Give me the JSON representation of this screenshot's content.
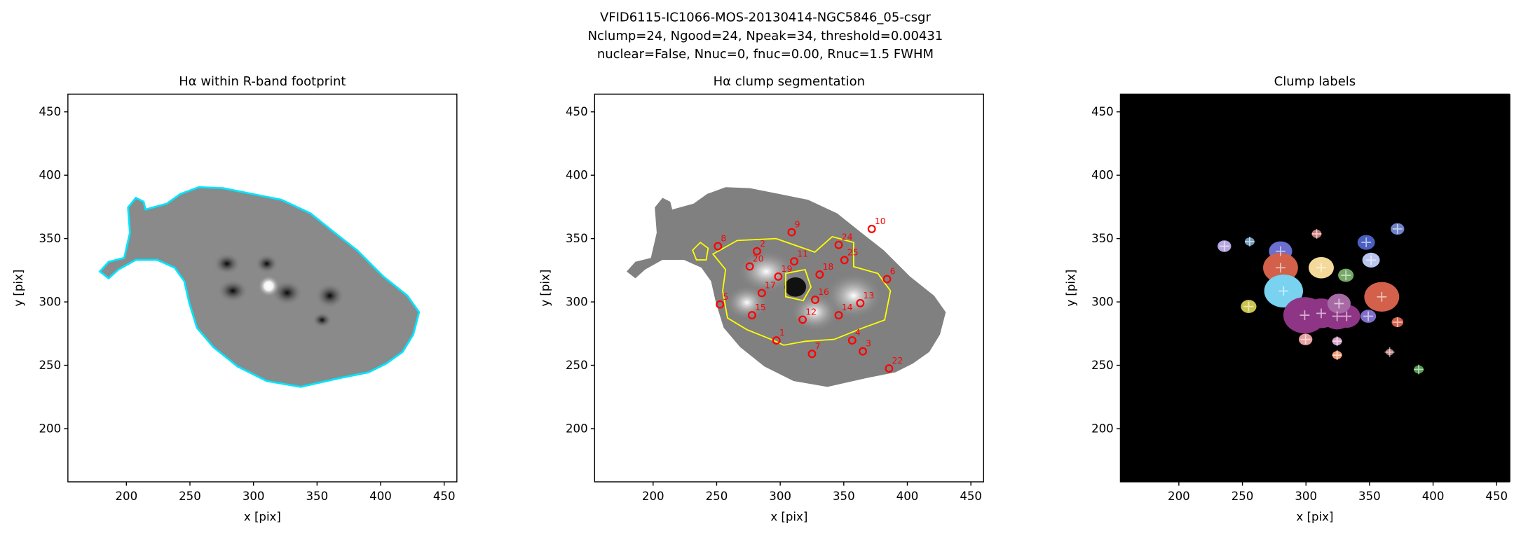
{
  "figure_title": [
    "VFID6115-IC1066-MOS-20130414-NGC5846_05-csgr",
    "Nclump=24, Ngood=24, Npeak=34, threshold=0.00431",
    "nuclear=False, Nnuc=0, fnuc=0.00, Rnuc=1.5 FWHM"
  ],
  "chart_data": [
    {
      "type": "image",
      "title": "Hα within R-band footprint",
      "xlabel": "x [pix]",
      "ylabel": "y [pix]",
      "xlim": [
        154,
        460
      ],
      "ylim": [
        158,
        464
      ],
      "xticks": [
        200,
        250,
        300,
        350,
        400,
        450
      ],
      "yticks": [
        200,
        250,
        300,
        350,
        400,
        450
      ]
    },
    {
      "type": "clumps",
      "title": "Hα clump segmentation",
      "xlabel": "x [pix]",
      "ylabel": "y [pix]",
      "xlim": [
        154,
        460
      ],
      "ylim": [
        158,
        464
      ],
      "xticks": [
        200,
        250,
        300,
        350,
        400,
        450
      ],
      "yticks": [
        200,
        250,
        300,
        350,
        400,
        450
      ],
      "marker_color": "#ff0000",
      "labels": [
        "9",
        "10",
        "24",
        "25",
        "2",
        "8",
        "20",
        "11",
        "18",
        "19",
        "6",
        "17",
        "16",
        "13",
        "5",
        "15",
        "12",
        "14",
        "1",
        "4",
        "7",
        "3",
        "22"
      ],
      "x": [
        309,
        372,
        346,
        350.5,
        281.7,
        251,
        276,
        311,
        331,
        298.5,
        384,
        285.5,
        327.5,
        363,
        252.6,
        277.8,
        317.6,
        346,
        297,
        356.6,
        325,
        365,
        385.6
      ],
      "y": [
        355,
        357.6,
        345,
        333,
        340,
        344,
        328,
        332,
        321.6,
        320,
        318,
        307,
        301.7,
        299,
        298,
        289.5,
        286,
        289.5,
        269.6,
        269.6,
        259,
        261,
        247.5
      ]
    },
    {
      "type": "labels",
      "title": "Clump labels",
      "xlabel": "x [pix]",
      "ylabel": "y [pix]",
      "xlim": [
        154,
        460
      ],
      "ylim": [
        158,
        464
      ],
      "xticks": [
        200,
        250,
        300,
        350,
        400,
        450
      ],
      "yticks": [
        200,
        250,
        300,
        350,
        400,
        450
      ],
      "x": [
        235.8,
        255.7,
        280,
        308.4,
        372,
        347.4,
        351.2,
        280,
        312,
        331.4,
        282.4,
        359.6,
        254.9,
        299,
        312,
        324.5,
        332,
        326,
        349,
        372,
        299.7,
        324.5,
        324.5,
        365.8,
        388.7
      ],
      "y": [
        344,
        347.6,
        340,
        353.7,
        357.6,
        347,
        333,
        327,
        327,
        321,
        308.6,
        304,
        296.4,
        289.5,
        291,
        288.7,
        288.7,
        298.7,
        288.7,
        284,
        270.4,
        269,
        258,
        260.4,
        246.7
      ],
      "colors": [
        "#b5a6e0",
        "#6f9bbd",
        "#6a6fd0",
        "#c77a7a",
        "#6f83c9",
        "#4a5fc0",
        "#b9c6ef",
        "#d2604a",
        "#f3d99a",
        "#76a867",
        "#78d2f0",
        "#d2604a",
        "#c9c44e",
        "#8e3585",
        "#8e3585",
        "#8e3585",
        "#8e3585",
        "#a86aa5",
        "#7f6fc9",
        "#d2604a",
        "#e7a0a0",
        "#d7a0c8",
        "#ee9b70",
        "#b97a7a",
        "#4d9b4d"
      ]
    }
  ]
}
